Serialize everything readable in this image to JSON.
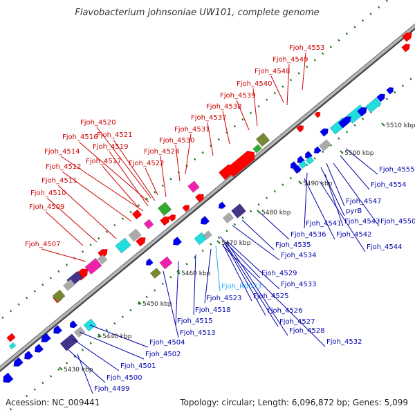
{
  "title": "Flavobacterium johnsoniae UW101, complete genome",
  "footer": {
    "accession": "Accession: NC_009441",
    "stats": "Topology: circular; Length: 6,096,872 bp; Genes: 5,099"
  },
  "colors": {
    "backbone": "#888888",
    "upper_label": "#cc0000",
    "lower_label": "#0000aa",
    "rna_label": "#22aaff",
    "ticks": "#227722",
    "feature_red": "#ff0000",
    "feature_blue": "#0000ee",
    "feature_cyan": "#22dddd",
    "feature_magenta": "#ee22aa",
    "feature_gray": "#aaaaaa",
    "feature_olive": "#778833",
    "feature_purple": "#443388",
    "feature_green": "#33aa33"
  },
  "kbp_ticks": [
    "5430 kbp",
    "5440 kbp",
    "5450 kbp",
    "5460 kbp",
    "5470 kbp",
    "5480 kbp",
    "5490 kbp",
    "5500 kbp",
    "5510 kbp"
  ],
  "upper_labels": [
    "Fjoh_4553",
    "Fjoh_4549",
    "Fjoh_4548",
    "Fjoh_4540",
    "Fjoh_4539",
    "Fjoh_4538",
    "Fjoh_4537",
    "Fjoh_4531",
    "Fjoh_4530",
    "Fjoh_4524",
    "Fjoh_4522",
    "Fjoh_4520",
    "Fjoh_4521",
    "Fjoh_4516",
    "Fjoh_4519",
    "Fjoh_4514",
    "Fjoh_4517",
    "Fjoh_4512",
    "Fjoh_4511",
    "Fjoh_4510",
    "Fjoh_4509",
    "Fjoh_4507"
  ],
  "lower_labels": [
    "Fjoh_4555",
    "Fjoh_4554",
    "Fjoh_4547",
    "pyrB",
    "Fjoh_4550",
    "Fjoh_4541",
    "Fjoh_4543",
    "Fjoh_4536",
    "Fjoh_4542",
    "Fjoh_4544",
    "Fjoh_4535",
    "Fjoh_4534",
    "Fjoh_4529",
    "Fjoh_R0073",
    "Fjoh_4533",
    "Fjoh_4523",
    "Fjoh_4525",
    "Fjoh_4518",
    "Fjoh_4526",
    "Fjoh_4527",
    "Fjoh_4515",
    "Fjoh_4528",
    "Fjoh_4513",
    "Fjoh_4532",
    "Fjoh_4504",
    "Fjoh_4502",
    "Fjoh_4501",
    "Fjoh_4500",
    "Fjoh_4499"
  ]
}
